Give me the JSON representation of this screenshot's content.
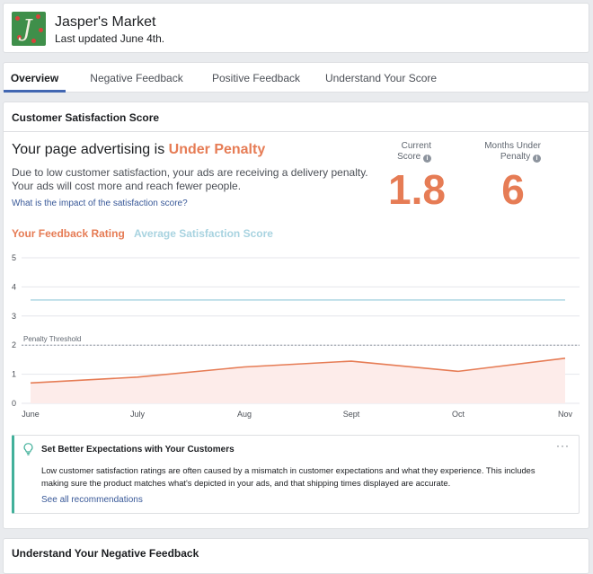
{
  "header": {
    "page_name": "Jasper's Market",
    "last_updated": "Last updated June 4th."
  },
  "tabs": [
    {
      "label": "Overview",
      "active": true
    },
    {
      "label": "Negative Feedback",
      "active": false
    },
    {
      "label": "Positive Feedback",
      "active": false
    },
    {
      "label": "Understand Your Score",
      "active": false
    }
  ],
  "score_section": {
    "title": "Customer Satisfaction Score",
    "heading_prefix": "Your page advertising is ",
    "status": "Under Penalty",
    "description": "Due to low customer satisfaction, your ads are receiving a delivery penalty. Your ads will cost more and reach fewer people.",
    "impact_link": "What is the impact of the satisfaction score?",
    "metrics": [
      {
        "label_line1": "Current",
        "label_line2": "Score",
        "value": "1.8"
      },
      {
        "label_line1": "Months Under",
        "label_line2": "Penalty",
        "value": "6"
      }
    ],
    "legend": [
      {
        "label": "Your Feedback Rating",
        "color": "#e67c55"
      },
      {
        "label": "Average Satisfaction Score",
        "color": "#a8d3e0"
      }
    ]
  },
  "chart_data": {
    "type": "line",
    "categories": [
      "June",
      "July",
      "Aug",
      "Sept",
      "Oct",
      "Nov"
    ],
    "y_ticks": [
      "0",
      "1",
      "2",
      "3",
      "4",
      "5"
    ],
    "ylim": [
      0,
      5
    ],
    "grid": true,
    "series": [
      {
        "name": "Your Feedback Rating",
        "color": "#e67c55",
        "fill": "#fdecea",
        "values": [
          0.7,
          0.9,
          1.25,
          1.45,
          1.1,
          1.55
        ]
      },
      {
        "name": "Average Satisfaction Score",
        "color": "#a8d3e0",
        "values": [
          3.55,
          3.55,
          3.55,
          3.55,
          3.55,
          3.55
        ]
      }
    ],
    "threshold": {
      "label": "Penalty Threshold",
      "value": 2
    }
  },
  "recommendation": {
    "title": "Set Better Expectations with Your Customers",
    "body": "Low customer satisfaction ratings are often caused by a mismatch in customer expectations and what they experience. This includes making sure the product matches what's depicted in your ads, and that shipping times displayed are accurate.",
    "link": "See all recommendations",
    "more": "···"
  },
  "bottom_section": {
    "title": "Understand Your Negative Feedback"
  }
}
